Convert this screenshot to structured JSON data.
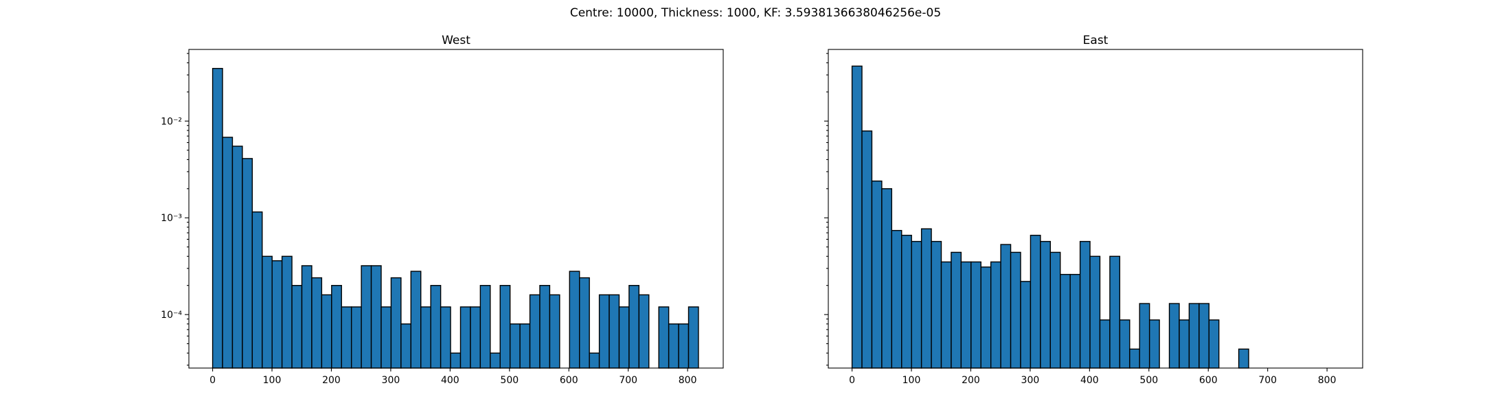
{
  "figure": {
    "suptitle": "Centre: 10000, Thickness: 1000, KF: 3.5938136638046256e-05"
  },
  "chart_data": [
    {
      "type": "bar",
      "title": "West",
      "xlabel": "",
      "ylabel": "",
      "y_scale": "log",
      "xlim": [
        -40,
        860
      ],
      "ylim": [
        2.8e-05,
        0.055
      ],
      "x_ticks": [
        0,
        100,
        200,
        300,
        400,
        500,
        600,
        700,
        800
      ],
      "y_ticks": [
        {
          "value": 0.0001,
          "label": "10⁻⁴"
        },
        {
          "value": 0.001,
          "label": "10⁻³"
        },
        {
          "value": 0.01,
          "label": "10⁻²"
        }
      ],
      "show_y_tick_labels": true,
      "bin_width": 16.7,
      "bin_start": 0,
      "values": [
        0.035,
        0.0068,
        0.0055,
        0.0041,
        0.00115,
        0.0004,
        0.00036,
        0.0004,
        0.0002,
        0.00032,
        0.00024,
        0.00016,
        0.0002,
        0.00012,
        0.00012,
        0.00032,
        0.00032,
        0.00012,
        0.00024,
        8e-05,
        0.00028,
        0.00012,
        0.0002,
        0.00012,
        4e-05,
        0.00012,
        0.00012,
        0.0002,
        4e-05,
        0.0002,
        8e-05,
        8e-05,
        0.00016,
        0.0002,
        0.00016,
        null,
        0.00028,
        0.00024,
        4e-05,
        0.00016,
        0.00016,
        0.00012,
        0.0002,
        0.00016,
        null,
        0.00012,
        8e-05,
        8e-05,
        0.00012
      ]
    },
    {
      "type": "bar",
      "title": "East",
      "xlabel": "",
      "ylabel": "",
      "y_scale": "log",
      "xlim": [
        -40,
        860
      ],
      "ylim": [
        2.8e-05,
        0.055
      ],
      "x_ticks": [
        0,
        100,
        200,
        300,
        400,
        500,
        600,
        700,
        800
      ],
      "y_ticks": [
        {
          "value": 0.0001,
          "label": "10⁻⁴"
        },
        {
          "value": 0.001,
          "label": "10⁻³"
        },
        {
          "value": 0.01,
          "label": "10⁻²"
        }
      ],
      "show_y_tick_labels": false,
      "bin_width": 16.7,
      "bin_start": 0,
      "values": [
        0.037,
        0.0079,
        0.0024,
        0.002,
        0.00074,
        0.00066,
        0.00057,
        0.00077,
        0.00057,
        0.00035,
        0.00044,
        0.00035,
        0.00035,
        0.00031,
        0.00035,
        0.00053,
        0.00044,
        0.00022,
        0.00066,
        0.00057,
        0.00044,
        0.00026,
        0.00026,
        0.00057,
        0.0004,
        8.8e-05,
        0.0004,
        8.8e-05,
        4.4e-05,
        0.00013,
        8.8e-05,
        null,
        0.00013,
        8.8e-05,
        0.00013,
        0.00013,
        8.8e-05,
        null,
        null,
        4.4e-05
      ]
    }
  ]
}
